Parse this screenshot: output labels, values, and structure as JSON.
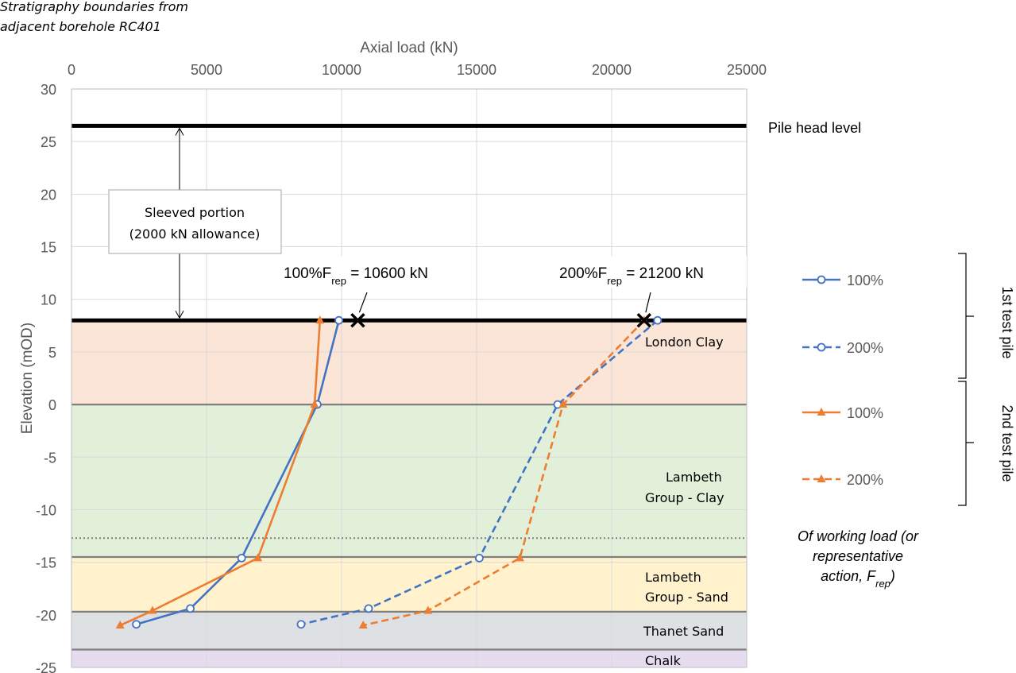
{
  "chart_data": {
    "type": "line",
    "top_note": [
      "Stratigraphy boundaries from",
      "adjacent borehole RC401"
    ],
    "xlabel": "Axial load (kN)",
    "ylabel": "Elevation (mOD)",
    "xlim": [
      0,
      25000
    ],
    "ylim": [
      -25,
      30
    ],
    "x_ticks": [
      "0",
      "5000",
      "10000",
      "15000",
      "20000",
      "25000"
    ],
    "y_ticks": [
      "30",
      "25",
      "20",
      "15",
      "10",
      "5",
      "0",
      "-5",
      "-10",
      "-15",
      "-20",
      "-25"
    ],
    "grid": true,
    "legend_position": "right",
    "series": [
      {
        "name": "100%",
        "color": "#4472C4",
        "dash": "solid",
        "marker": "circle",
        "x": [
          9900,
          9100,
          6300,
          4400,
          2400
        ],
        "y": [
          8,
          0,
          -14.6,
          -19.4,
          -20.9
        ]
      },
      {
        "name": "200%",
        "color": "#4472C4",
        "dash": "dashed",
        "marker": "circle",
        "x": [
          21700,
          18000,
          15100,
          11000,
          8500
        ],
        "y": [
          8,
          0,
          -14.6,
          -19.4,
          -20.9
        ]
      },
      {
        "name": "100%",
        "color": "#ED7D31",
        "dash": "solid",
        "marker": "triangle",
        "x": [
          9200,
          9000,
          6900,
          3000,
          1800
        ],
        "y": [
          8,
          0,
          -14.6,
          -19.6,
          -21
        ]
      },
      {
        "name": "200%",
        "color": "#ED7D31",
        "dash": "dashed",
        "marker": "triangle",
        "x": [
          21200,
          18200,
          16600,
          13200,
          10800
        ],
        "y": [
          8,
          0,
          -14.6,
          -19.6,
          -21
        ]
      }
    ],
    "strata": [
      {
        "name": "London Clay",
        "top": 8,
        "bottom": 0,
        "color": "#FBE5D6"
      },
      {
        "name": "Lambeth Group - Clay",
        "top": 0,
        "bottom": -14.5,
        "color": "#E2F0D9"
      },
      {
        "name": "Lambeth Group - Sand",
        "top": -14.5,
        "bottom": -19.7,
        "color": "#FFF2CC"
      },
      {
        "name": "Thanet Sand",
        "top": -19.7,
        "bottom": -23.3,
        "color": "#DEE1E3"
      },
      {
        "name": "Chalk",
        "top": -23.3,
        "bottom": -25,
        "color": "#E6DCF0"
      }
    ],
    "strata_labels": {
      "london_clay": "London Clay",
      "lambeth_clay": [
        "Lambeth",
        "Group - Clay"
      ],
      "lambeth_sand": [
        "Lambeth",
        "Group - Sand"
      ],
      "thanet_sand": "Thanet Sand",
      "chalk": "Chalk"
    },
    "dotted_boundary_elevation": -12.7,
    "pile_head_level": {
      "elevation": 26.5,
      "label": "Pile head level"
    },
    "sleeve_base_elevation": 8,
    "sleeve_annotation": {
      "lines": [
        "Sleeved portion",
        "(2000 kN allowance)"
      ],
      "x_value": 4000
    },
    "callouts": [
      {
        "prefix": "100%F",
        "sub": "rep",
        "suffix": " = 10600 kN",
        "x_value": 10600,
        "y_value": 8
      },
      {
        "prefix": "200%F",
        "sub": "rep",
        "suffix": " = 21200 kN",
        "x_value": 21200,
        "y_value": 8
      }
    ],
    "pile_groups": [
      "1st test pile",
      "2nd test pile"
    ],
    "legend_note": {
      "lines": [
        "Of working load (or",
        "representative",
        "action, F"
      ],
      "sub": "rep",
      "tail": ")"
    }
  }
}
